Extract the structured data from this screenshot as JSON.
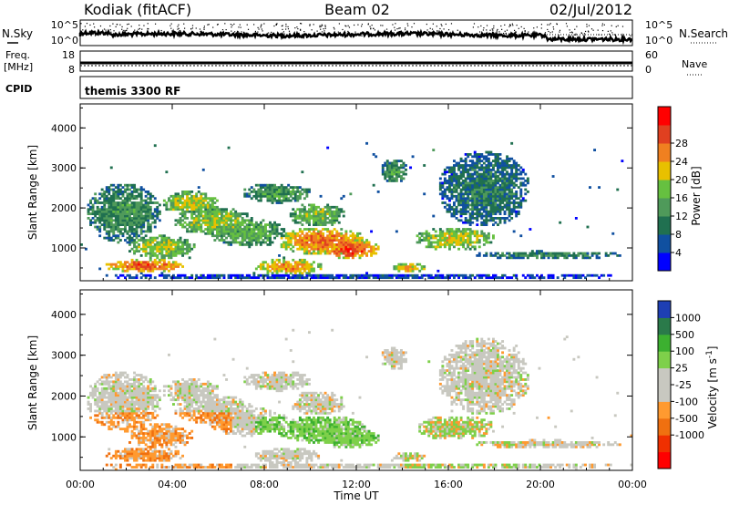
{
  "header": {
    "station": "Kodiak (fitACF)",
    "beam": "Beam 02",
    "date": "02/Jul/2012"
  },
  "noise_panel": {
    "left_label": "N.Sky",
    "right_label": "N.Search",
    "left_ticks": [
      "10^5",
      "10^0"
    ],
    "right_ticks": [
      "10^5",
      "10^0"
    ]
  },
  "freq_panel": {
    "left_label_1": "Freq.",
    "left_label_2": "[MHz]",
    "right_label": "Nave",
    "left_ticks": [
      "18",
      "8"
    ],
    "right_ticks": [
      "60",
      "0"
    ]
  },
  "cpid_panel": {
    "label": "CPID",
    "text": "themis 3300 RF"
  },
  "chart_data": [
    {
      "type": "heatmap",
      "quantity": "Power",
      "xlabel": "Time UT",
      "ylabel": "Slant Range [km]",
      "x_range_hours": [
        0,
        24
      ],
      "ylim": [
        180,
        4600
      ],
      "y_ticks": [
        "1000",
        "2000",
        "3000",
        "4000"
      ],
      "colorbar": {
        "label": "Power [dB]",
        "ticks": [
          "4",
          "8",
          "12",
          "16",
          "20",
          "24",
          "28"
        ],
        "colors": [
          "#0000ff",
          "#1050a0",
          "#207050",
          "#4f9a5a",
          "#66c040",
          "#e8c000",
          "#f08020",
          "#e04020",
          "#ff0000"
        ],
        "range": [
          0,
          32
        ]
      }
    },
    {
      "type": "heatmap",
      "quantity": "Velocity",
      "xlabel": "Time UT",
      "ylabel": "Slant Range [km]",
      "x_range_hours": [
        0,
        24
      ],
      "ylim": [
        180,
        4600
      ],
      "y_ticks": [
        "1000",
        "2000",
        "3000",
        "4000"
      ],
      "colorbar": {
        "label": "Velocity [m s-1]",
        "ticks": [
          "1000",
          "500",
          "100",
          "25",
          "-25",
          "-100",
          "-500",
          "-1000"
        ],
        "colors": [
          "#1e3fb4",
          "#2a7a4a",
          "#3cb030",
          "#7ed04a",
          "#c8c8c0",
          "#c8c8c0",
          "#ff9a30",
          "#f07010",
          "#f03000",
          "#ff0000"
        ]
      }
    }
  ],
  "time_axis": {
    "ticks": [
      "00:00",
      "04:00",
      "08:00",
      "12:00",
      "16:00",
      "20:00",
      "00:00"
    ],
    "label": "Time UT"
  }
}
